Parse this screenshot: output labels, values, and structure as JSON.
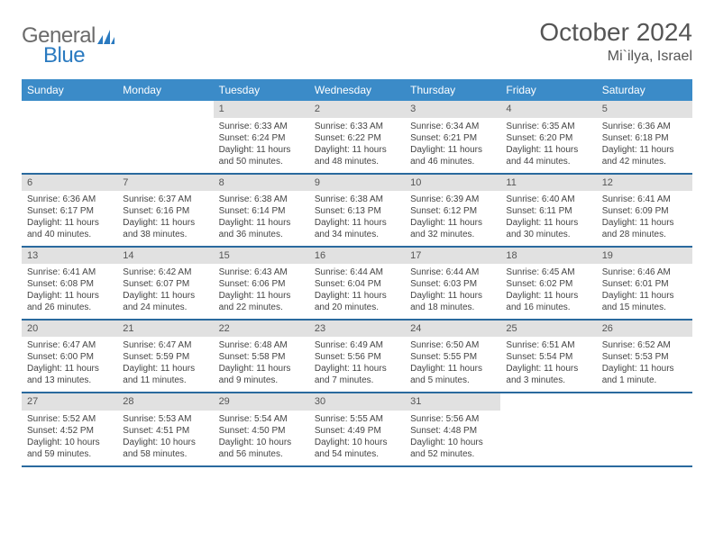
{
  "logo": {
    "part1": "General",
    "part2": "Blue"
  },
  "title": "October 2024",
  "location": "Mi`ilya, Israel",
  "colors": {
    "header_bg": "#3b8bc8",
    "header_text": "#ffffff",
    "row_border": "#2a6a9e",
    "daynum_bg": "#e1e1e1",
    "body_text": "#444444",
    "title_text": "#555555",
    "logo_gray": "#6b6b6b",
    "logo_blue": "#2a7ac0"
  },
  "dayNames": [
    "Sunday",
    "Monday",
    "Tuesday",
    "Wednesday",
    "Thursday",
    "Friday",
    "Saturday"
  ],
  "weeks": [
    [
      null,
      null,
      {
        "n": "1",
        "sr": "Sunrise: 6:33 AM",
        "ss": "Sunset: 6:24 PM",
        "dl": "Daylight: 11 hours and 50 minutes."
      },
      {
        "n": "2",
        "sr": "Sunrise: 6:33 AM",
        "ss": "Sunset: 6:22 PM",
        "dl": "Daylight: 11 hours and 48 minutes."
      },
      {
        "n": "3",
        "sr": "Sunrise: 6:34 AM",
        "ss": "Sunset: 6:21 PM",
        "dl": "Daylight: 11 hours and 46 minutes."
      },
      {
        "n": "4",
        "sr": "Sunrise: 6:35 AM",
        "ss": "Sunset: 6:20 PM",
        "dl": "Daylight: 11 hours and 44 minutes."
      },
      {
        "n": "5",
        "sr": "Sunrise: 6:36 AM",
        "ss": "Sunset: 6:18 PM",
        "dl": "Daylight: 11 hours and 42 minutes."
      }
    ],
    [
      {
        "n": "6",
        "sr": "Sunrise: 6:36 AM",
        "ss": "Sunset: 6:17 PM",
        "dl": "Daylight: 11 hours and 40 minutes."
      },
      {
        "n": "7",
        "sr": "Sunrise: 6:37 AM",
        "ss": "Sunset: 6:16 PM",
        "dl": "Daylight: 11 hours and 38 minutes."
      },
      {
        "n": "8",
        "sr": "Sunrise: 6:38 AM",
        "ss": "Sunset: 6:14 PM",
        "dl": "Daylight: 11 hours and 36 minutes."
      },
      {
        "n": "9",
        "sr": "Sunrise: 6:38 AM",
        "ss": "Sunset: 6:13 PM",
        "dl": "Daylight: 11 hours and 34 minutes."
      },
      {
        "n": "10",
        "sr": "Sunrise: 6:39 AM",
        "ss": "Sunset: 6:12 PM",
        "dl": "Daylight: 11 hours and 32 minutes."
      },
      {
        "n": "11",
        "sr": "Sunrise: 6:40 AM",
        "ss": "Sunset: 6:11 PM",
        "dl": "Daylight: 11 hours and 30 minutes."
      },
      {
        "n": "12",
        "sr": "Sunrise: 6:41 AM",
        "ss": "Sunset: 6:09 PM",
        "dl": "Daylight: 11 hours and 28 minutes."
      }
    ],
    [
      {
        "n": "13",
        "sr": "Sunrise: 6:41 AM",
        "ss": "Sunset: 6:08 PM",
        "dl": "Daylight: 11 hours and 26 minutes."
      },
      {
        "n": "14",
        "sr": "Sunrise: 6:42 AM",
        "ss": "Sunset: 6:07 PM",
        "dl": "Daylight: 11 hours and 24 minutes."
      },
      {
        "n": "15",
        "sr": "Sunrise: 6:43 AM",
        "ss": "Sunset: 6:06 PM",
        "dl": "Daylight: 11 hours and 22 minutes."
      },
      {
        "n": "16",
        "sr": "Sunrise: 6:44 AM",
        "ss": "Sunset: 6:04 PM",
        "dl": "Daylight: 11 hours and 20 minutes."
      },
      {
        "n": "17",
        "sr": "Sunrise: 6:44 AM",
        "ss": "Sunset: 6:03 PM",
        "dl": "Daylight: 11 hours and 18 minutes."
      },
      {
        "n": "18",
        "sr": "Sunrise: 6:45 AM",
        "ss": "Sunset: 6:02 PM",
        "dl": "Daylight: 11 hours and 16 minutes."
      },
      {
        "n": "19",
        "sr": "Sunrise: 6:46 AM",
        "ss": "Sunset: 6:01 PM",
        "dl": "Daylight: 11 hours and 15 minutes."
      }
    ],
    [
      {
        "n": "20",
        "sr": "Sunrise: 6:47 AM",
        "ss": "Sunset: 6:00 PM",
        "dl": "Daylight: 11 hours and 13 minutes."
      },
      {
        "n": "21",
        "sr": "Sunrise: 6:47 AM",
        "ss": "Sunset: 5:59 PM",
        "dl": "Daylight: 11 hours and 11 minutes."
      },
      {
        "n": "22",
        "sr": "Sunrise: 6:48 AM",
        "ss": "Sunset: 5:58 PM",
        "dl": "Daylight: 11 hours and 9 minutes."
      },
      {
        "n": "23",
        "sr": "Sunrise: 6:49 AM",
        "ss": "Sunset: 5:56 PM",
        "dl": "Daylight: 11 hours and 7 minutes."
      },
      {
        "n": "24",
        "sr": "Sunrise: 6:50 AM",
        "ss": "Sunset: 5:55 PM",
        "dl": "Daylight: 11 hours and 5 minutes."
      },
      {
        "n": "25",
        "sr": "Sunrise: 6:51 AM",
        "ss": "Sunset: 5:54 PM",
        "dl": "Daylight: 11 hours and 3 minutes."
      },
      {
        "n": "26",
        "sr": "Sunrise: 6:52 AM",
        "ss": "Sunset: 5:53 PM",
        "dl": "Daylight: 11 hours and 1 minute."
      }
    ],
    [
      {
        "n": "27",
        "sr": "Sunrise: 5:52 AM",
        "ss": "Sunset: 4:52 PM",
        "dl": "Daylight: 10 hours and 59 minutes."
      },
      {
        "n": "28",
        "sr": "Sunrise: 5:53 AM",
        "ss": "Sunset: 4:51 PM",
        "dl": "Daylight: 10 hours and 58 minutes."
      },
      {
        "n": "29",
        "sr": "Sunrise: 5:54 AM",
        "ss": "Sunset: 4:50 PM",
        "dl": "Daylight: 10 hours and 56 minutes."
      },
      {
        "n": "30",
        "sr": "Sunrise: 5:55 AM",
        "ss": "Sunset: 4:49 PM",
        "dl": "Daylight: 10 hours and 54 minutes."
      },
      {
        "n": "31",
        "sr": "Sunrise: 5:56 AM",
        "ss": "Sunset: 4:48 PM",
        "dl": "Daylight: 10 hours and 52 minutes."
      },
      null,
      null
    ]
  ]
}
